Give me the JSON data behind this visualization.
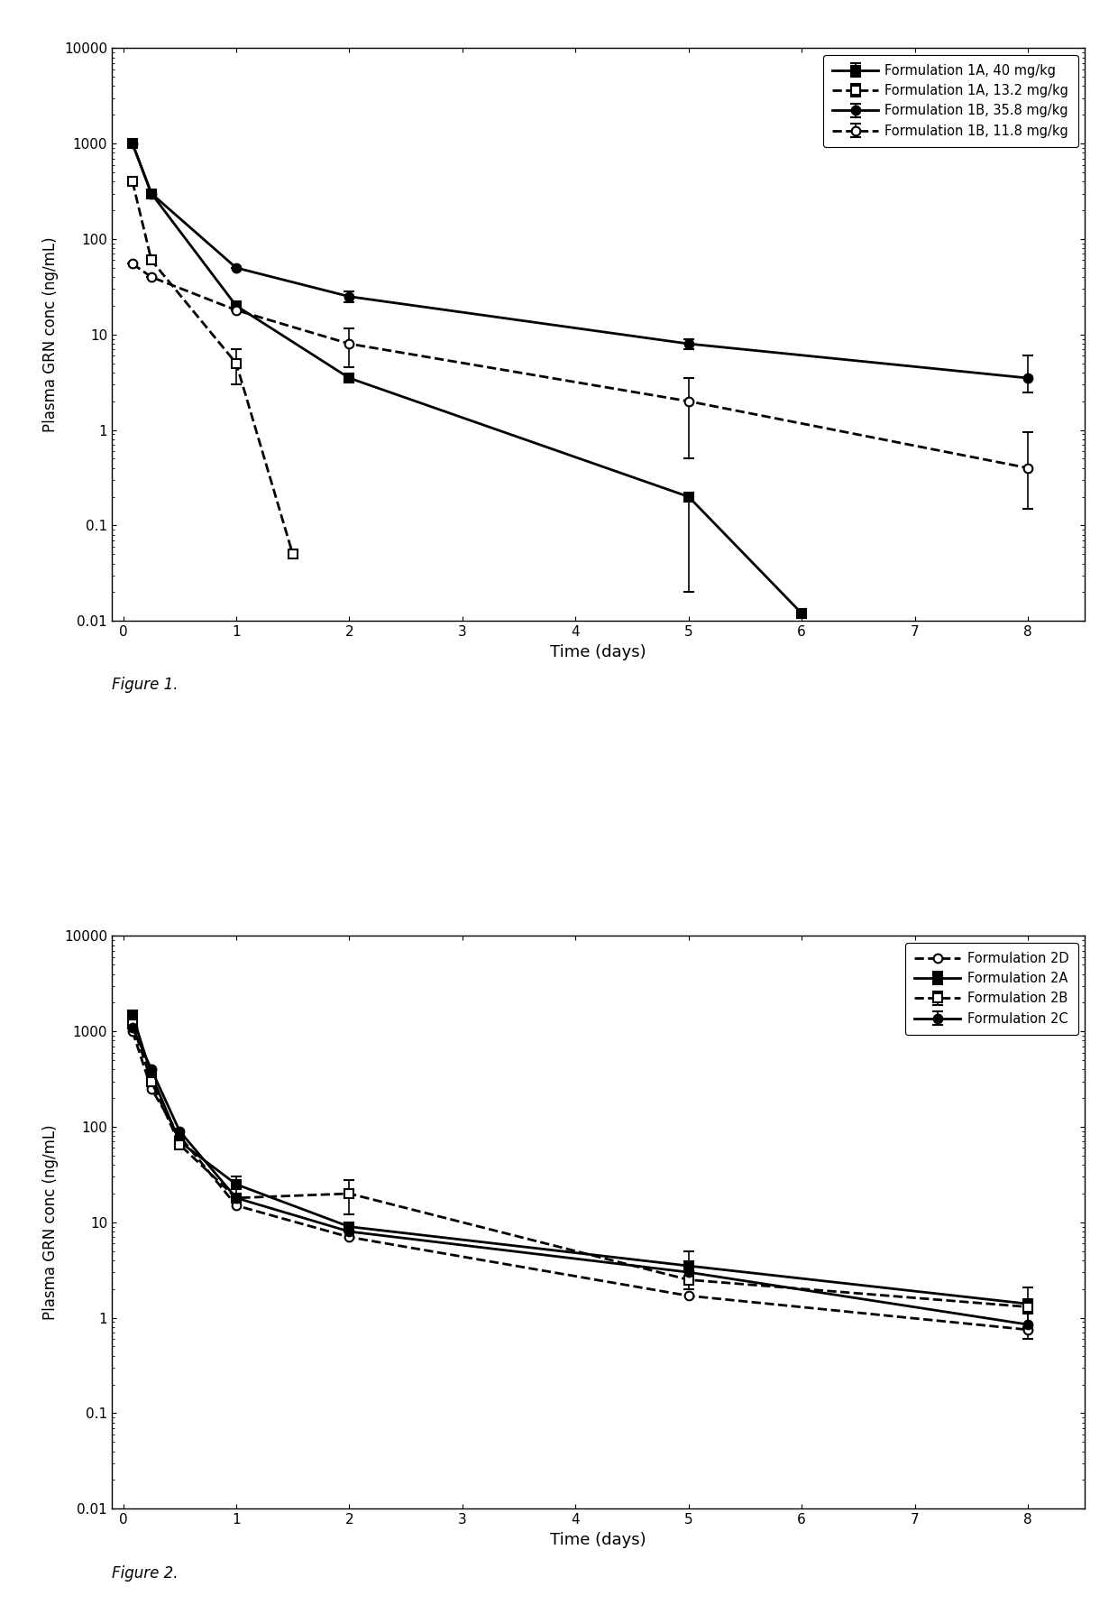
{
  "fig1": {
    "xlabel": "Time (days)",
    "ylabel": "Plasma GRN conc (ng/mL)",
    "ylim": [
      0.01,
      10000
    ],
    "xlim": [
      -0.1,
      8.5
    ],
    "xticks": [
      0,
      1,
      2,
      3,
      4,
      5,
      6,
      7,
      8
    ],
    "series": [
      {
        "label": "Formulation 1A, 40 mg/kg",
        "x": [
          0.083,
          0.25,
          1.0,
          2.0,
          5.0,
          6.0
        ],
        "y": [
          1000,
          300,
          20,
          3.5,
          0.2,
          0.012
        ],
        "yerr_lo": [
          null,
          null,
          null,
          null,
          0.18,
          null
        ],
        "yerr_hi": [
          null,
          null,
          null,
          null,
          null,
          null
        ],
        "linestyle": "-",
        "marker": "s",
        "fillstyle": "full",
        "linewidth": 2.0
      },
      {
        "label": "Formulation 1A, 13.2 mg/kg",
        "x": [
          0.083,
          0.25,
          1.0,
          1.5
        ],
        "y": [
          400,
          60,
          5.0,
          0.05
        ],
        "yerr_lo": [
          null,
          null,
          2.0,
          null
        ],
        "yerr_hi": [
          null,
          null,
          2.0,
          null
        ],
        "linestyle": "--",
        "marker": "s",
        "fillstyle": "none",
        "linewidth": 2.0
      },
      {
        "label": "Formulation 1B, 35.8 mg/kg",
        "x": [
          0.083,
          0.25,
          1.0,
          2.0,
          5.0,
          8.0
        ],
        "y": [
          1000,
          300,
          50,
          25,
          8.0,
          3.5
        ],
        "yerr_lo": [
          null,
          null,
          null,
          3.0,
          1.0,
          1.0
        ],
        "yerr_hi": [
          null,
          null,
          null,
          3.0,
          1.0,
          2.5
        ],
        "linestyle": "-",
        "marker": "o",
        "fillstyle": "full",
        "linewidth": 2.0
      },
      {
        "label": "Formulation 1B, 11.8 mg/kg",
        "x": [
          0.083,
          0.25,
          1.0,
          2.0,
          5.0,
          8.0
        ],
        "y": [
          55,
          40,
          18,
          8.0,
          2.0,
          0.4
        ],
        "yerr_lo": [
          null,
          null,
          null,
          3.5,
          1.5,
          0.25
        ],
        "yerr_hi": [
          null,
          null,
          null,
          3.5,
          1.5,
          0.55
        ],
        "linestyle": "--",
        "marker": "o",
        "fillstyle": "none",
        "linewidth": 2.0
      }
    ],
    "figure_label": "Figure 1."
  },
  "fig2": {
    "xlabel": "Time (days)",
    "ylabel": "Plasma GRN conc (ng/mL)",
    "ylim": [
      0.01,
      10000
    ],
    "xlim": [
      -0.1,
      8.5
    ],
    "xticks": [
      0,
      1,
      2,
      3,
      4,
      5,
      6,
      7,
      8
    ],
    "series": [
      {
        "label": "Formulation 2A",
        "x": [
          0.083,
          0.25,
          0.5,
          1.0,
          2.0,
          5.0,
          8.0
        ],
        "y": [
          1500,
          350,
          70,
          25,
          9.0,
          3.5,
          1.4
        ],
        "yerr_lo": [
          null,
          null,
          null,
          5.0,
          null,
          1.5,
          0.6
        ],
        "yerr_hi": [
          null,
          null,
          null,
          5.0,
          null,
          1.5,
          0.7
        ],
        "linestyle": "-",
        "marker": "s",
        "fillstyle": "full",
        "linewidth": 2.0
      },
      {
        "label": "Formulation 2B",
        "x": [
          0.083,
          0.25,
          0.5,
          1.0,
          2.0,
          5.0,
          8.0
        ],
        "y": [
          1200,
          300,
          65,
          18,
          20,
          2.5,
          1.3
        ],
        "yerr_lo": [
          null,
          null,
          null,
          null,
          8.0,
          null,
          null
        ],
        "yerr_hi": [
          null,
          null,
          null,
          null,
          8.0,
          null,
          null
        ],
        "linestyle": "--",
        "marker": "s",
        "fillstyle": "none",
        "linewidth": 2.0
      },
      {
        "label": "Formulation 2C",
        "x": [
          0.083,
          0.25,
          0.5,
          1.0,
          2.0,
          5.0,
          8.0
        ],
        "y": [
          1100,
          400,
          90,
          18,
          8.0,
          3.0,
          0.85
        ],
        "yerr_lo": [
          null,
          null,
          null,
          null,
          null,
          null,
          0.25
        ],
        "yerr_hi": [
          null,
          null,
          null,
          null,
          null,
          null,
          0.25
        ],
        "linestyle": "-",
        "marker": "o",
        "fillstyle": "full",
        "linewidth": 2.0
      },
      {
        "label": "Formulation 2D",
        "x": [
          0.083,
          0.25,
          0.5,
          1.0,
          2.0,
          5.0,
          8.0
        ],
        "y": [
          1000,
          250,
          80,
          15,
          7.0,
          1.7,
          0.75
        ],
        "yerr_lo": [
          null,
          null,
          null,
          null,
          null,
          null,
          null
        ],
        "yerr_hi": [
          null,
          null,
          null,
          null,
          null,
          null,
          null
        ],
        "linestyle": "--",
        "marker": "o",
        "fillstyle": "none",
        "linewidth": 2.0
      }
    ],
    "figure_label": "Figure 2."
  }
}
